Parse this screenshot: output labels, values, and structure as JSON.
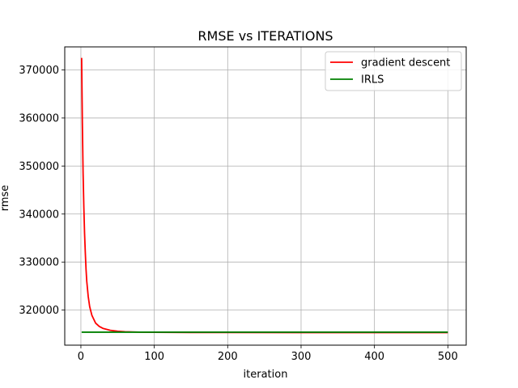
{
  "chart_data": {
    "type": "line",
    "title": "RMSE vs ITERATIONS",
    "xlabel": "iteration",
    "ylabel": "rmse",
    "xlim": [
      -22,
      525
    ],
    "ylim": [
      312700,
      374800
    ],
    "x_ticks": [
      0,
      100,
      200,
      300,
      400,
      500
    ],
    "y_ticks": [
      320000,
      330000,
      340000,
      350000,
      360000,
      370000
    ],
    "grid": true,
    "legend_position": "top-right",
    "series": [
      {
        "name": "gradient descent",
        "color": "#ff0000",
        "x": [
          1,
          2,
          3,
          4,
          5,
          6,
          7,
          8,
          10,
          12,
          15,
          20,
          25,
          30,
          40,
          50,
          60,
          80,
          100,
          150,
          200,
          300,
          400,
          500
        ],
        "y": [
          372500,
          359000,
          348500,
          341500,
          336000,
          332000,
          328500,
          326000,
          322800,
          320700,
          318900,
          317300,
          316600,
          316200,
          315800,
          315600,
          315500,
          315420,
          315380,
          315340,
          315330,
          315320,
          315320,
          315320
        ]
      },
      {
        "name": "IRLS",
        "color": "#008000",
        "x": [
          1,
          500
        ],
        "y": [
          315400,
          315400
        ]
      }
    ]
  }
}
